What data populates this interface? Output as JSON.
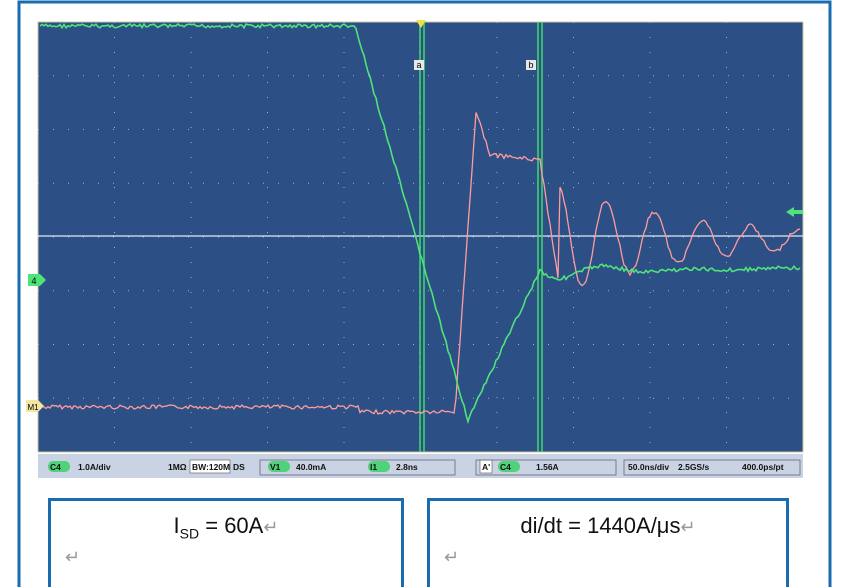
{
  "scope": {
    "cursor_labels": [
      "a",
      "b"
    ],
    "markers": [
      "4",
      "M1"
    ],
    "status": [
      "C4",
      "1.0A/div",
      "1MΩ",
      "BW:120M",
      "DS",
      "V1",
      "40.0mA",
      "I1",
      "2.8ns",
      "A'",
      "C4",
      "1.56A",
      "50.0ns/div",
      "2.5GS/s",
      "400.0ps/pt"
    ]
  },
  "boxes": [
    {
      "parts": [
        "I",
        "SD",
        " = 60A"
      ],
      "return": "↵",
      "line2": "↵"
    },
    {
      "parts": [
        "di/dt = 1440A/μs"
      ],
      "return": "↵",
      "line2": "↵"
    }
  ]
}
